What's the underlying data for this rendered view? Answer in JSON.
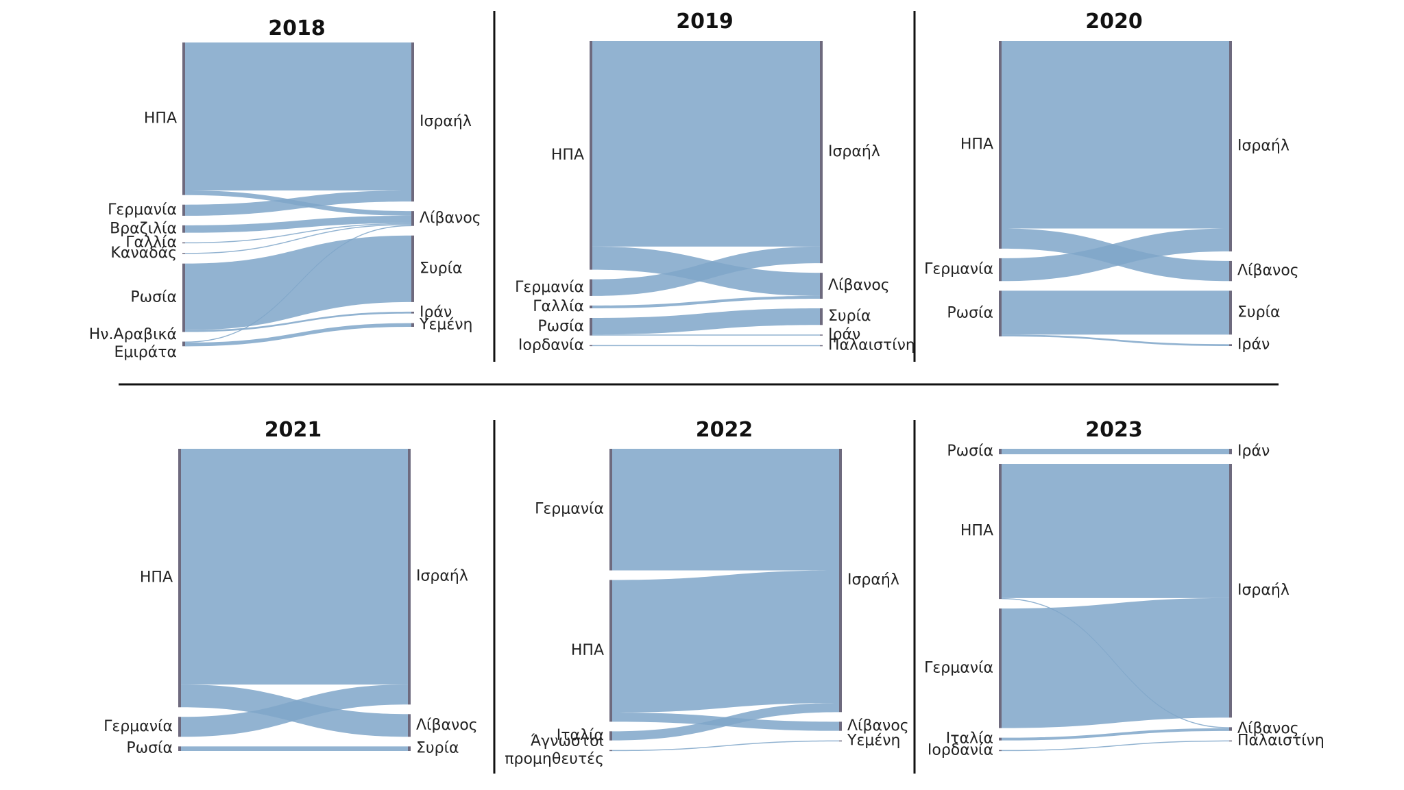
{
  "chart_data": [
    {
      "type": "sankey",
      "title": "2018",
      "sources": [
        "ΗΠΑ",
        "Γερμανία",
        "Βραζιλία",
        "Γαλλία",
        "Καναδάς",
        "Ρωσία",
        "Ην.Αραβικά\nΕμιράτα"
      ],
      "targets": [
        "Ισραήλ",
        "Λίβανος",
        "Συρία",
        "Ιράν",
        "Υεμένη"
      ],
      "links": [
        {
          "source": 0,
          "target": 0,
          "value": 160
        },
        {
          "source": 0,
          "target": 1,
          "value": 5
        },
        {
          "source": 1,
          "target": 0,
          "value": 12
        },
        {
          "source": 2,
          "target": 1,
          "value": 8
        },
        {
          "source": 3,
          "target": 1,
          "value": 1
        },
        {
          "source": 4,
          "target": 1,
          "value": 1
        },
        {
          "source": 5,
          "target": 2,
          "value": 72
        },
        {
          "source": 5,
          "target": 3,
          "value": 2
        },
        {
          "source": 6,
          "target": 1,
          "value": 1
        },
        {
          "source": 6,
          "target": 4,
          "value": 4
        }
      ]
    },
    {
      "type": "sankey",
      "title": "2019",
      "sources": [
        "ΗΠΑ",
        "Γερμανία",
        "Γαλλία",
        "Ρωσία",
        "Ιορδανία"
      ],
      "targets": [
        "Ισραήλ",
        "Λίβανος",
        "Συρία",
        "Ιράν",
        "Παλαιστίνη"
      ],
      "links": [
        {
          "source": 0,
          "target": 0,
          "value": 222
        },
        {
          "source": 0,
          "target": 1,
          "value": 25
        },
        {
          "source": 1,
          "target": 0,
          "value": 18
        },
        {
          "source": 2,
          "target": 1,
          "value": 3
        },
        {
          "source": 3,
          "target": 2,
          "value": 18
        },
        {
          "source": 3,
          "target": 3,
          "value": 1
        },
        {
          "source": 4,
          "target": 4,
          "value": 1
        }
      ]
    },
    {
      "type": "sankey",
      "title": "2020",
      "sources": [
        "ΗΠΑ",
        "Γερμανία",
        "Ρωσία"
      ],
      "targets": [
        "Ισραήλ",
        "Λίβανος",
        "Συρία",
        "Ιράν"
      ],
      "links": [
        {
          "source": 0,
          "target": 0,
          "value": 205
        },
        {
          "source": 0,
          "target": 1,
          "value": 22
        },
        {
          "source": 1,
          "target": 0,
          "value": 25
        },
        {
          "source": 2,
          "target": 2,
          "value": 48
        },
        {
          "source": 2,
          "target": 3,
          "value": 2
        }
      ]
    },
    {
      "type": "sankey",
      "title": "2021",
      "sources": [
        "ΗΠΑ",
        "Γερμανία",
        "Ρωσία"
      ],
      "targets": [
        "Ισραήλ",
        "Λίβανος",
        "Συρία"
      ],
      "links": [
        {
          "source": 0,
          "target": 0,
          "value": 260
        },
        {
          "source": 0,
          "target": 1,
          "value": 25
        },
        {
          "source": 1,
          "target": 0,
          "value": 22
        },
        {
          "source": 2,
          "target": 2,
          "value": 5
        }
      ]
    },
    {
      "type": "sankey",
      "title": "2022",
      "sources": [
        "Γερμανία",
        "ΗΠΑ",
        "Ιταλία",
        "Άγνωστοι\nπρομηθευτές"
      ],
      "targets": [
        "Ισραήλ",
        "Λίβανος",
        "Υεμένη"
      ],
      "links": [
        {
          "source": 0,
          "target": 0,
          "value": 133
        },
        {
          "source": 1,
          "target": 0,
          "value": 145
        },
        {
          "source": 1,
          "target": 1,
          "value": 10
        },
        {
          "source": 2,
          "target": 0,
          "value": 10
        },
        {
          "source": 3,
          "target": 2,
          "value": 1
        }
      ]
    },
    {
      "type": "sankey",
      "title": "2023",
      "sources": [
        "Ρωσία",
        "ΗΠΑ",
        "Γερμανία",
        "Ιταλία",
        "Ιορδανία"
      ],
      "targets": [
        "Ιράν",
        "Ισραήλ",
        "Λίβανος",
        "Παλαιστίνη"
      ],
      "links": [
        {
          "source": 0,
          "target": 0,
          "value": 6
        },
        {
          "source": 1,
          "target": 1,
          "value": 147
        },
        {
          "source": 1,
          "target": 2,
          "value": 1
        },
        {
          "source": 2,
          "target": 1,
          "value": 131
        },
        {
          "source": 3,
          "target": 2,
          "value": 3
        },
        {
          "source": 4,
          "target": 3,
          "value": 1
        }
      ]
    }
  ]
}
